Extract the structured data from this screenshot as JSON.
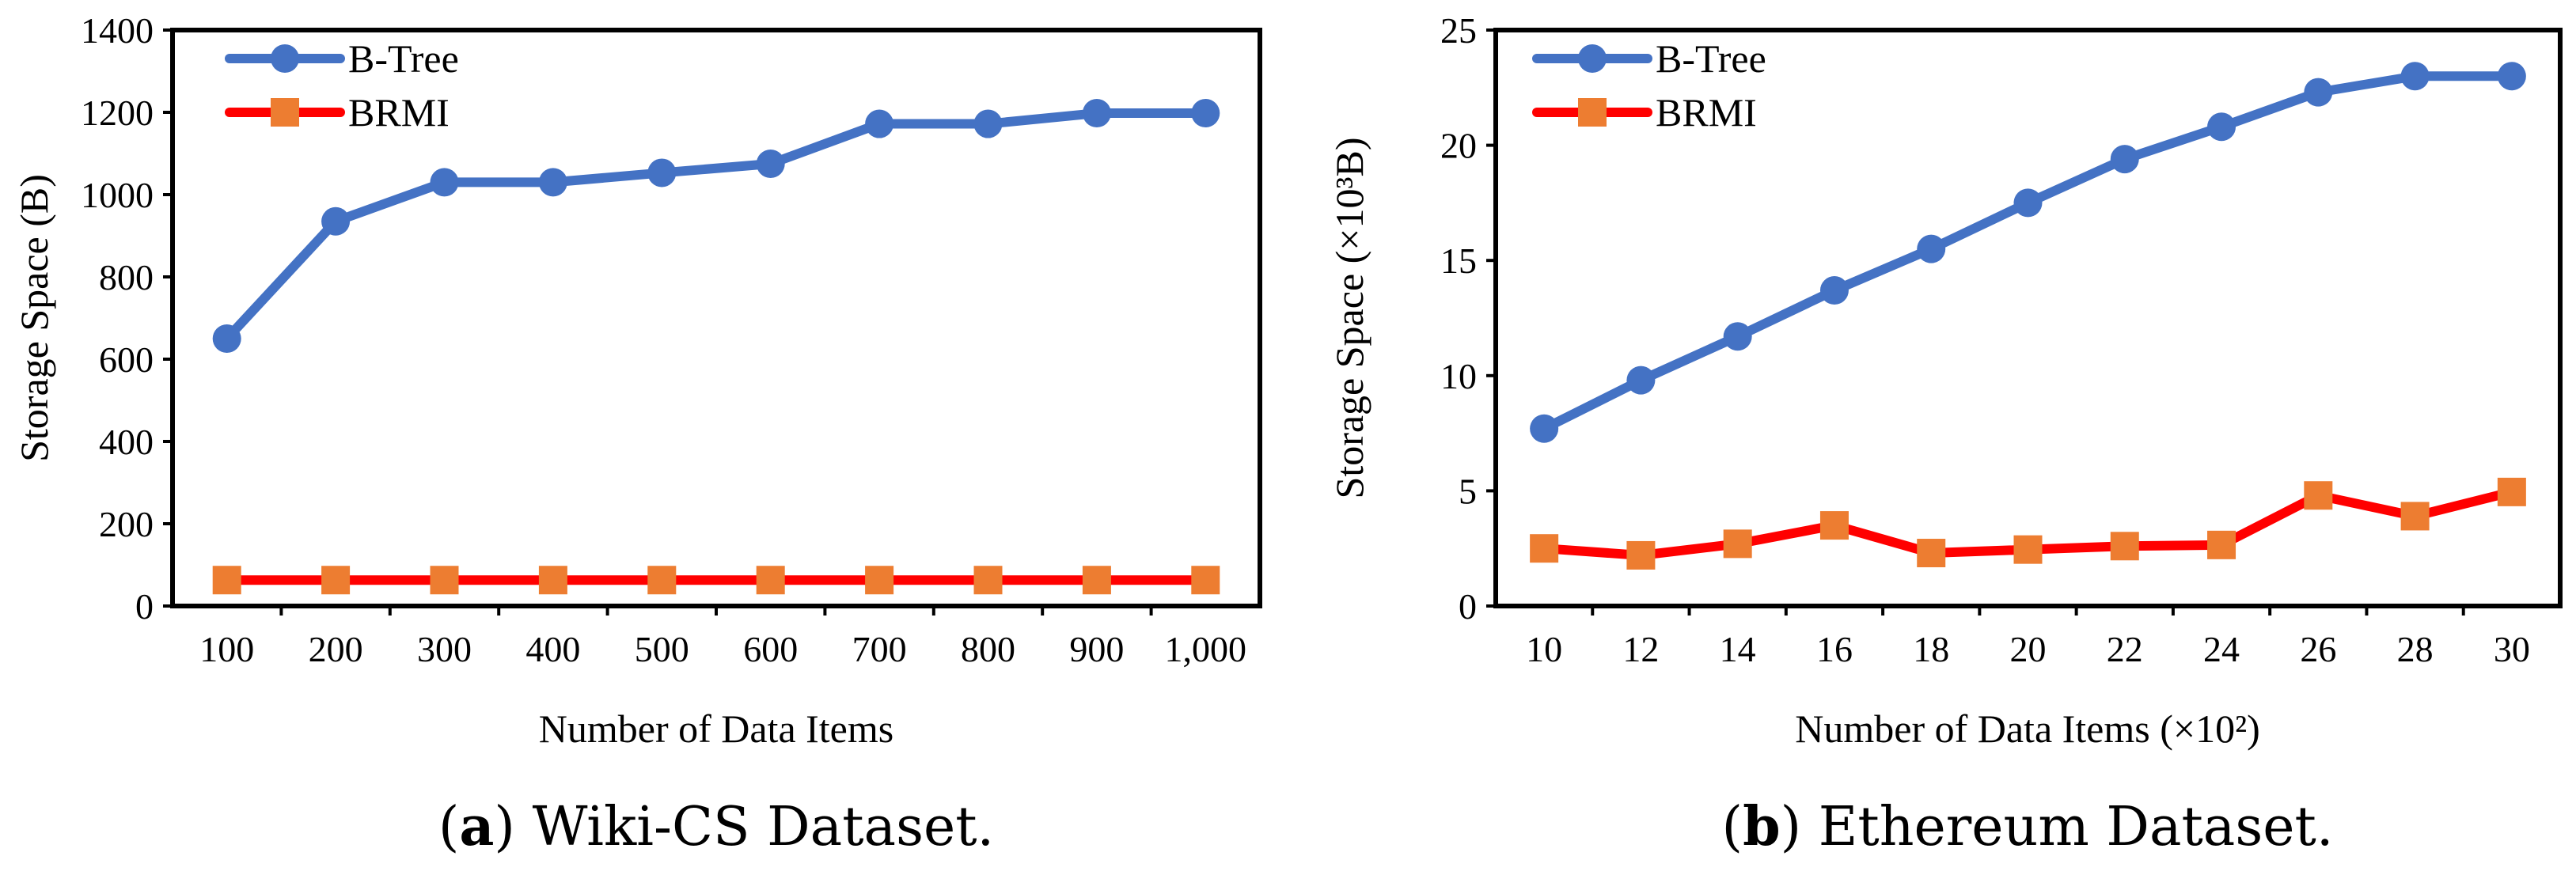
{
  "chart_data": [
    {
      "type": "line",
      "caption_letter": "a",
      "caption_text": "Wiki-CS Dataset.",
      "xlabel": "Number of Data Items",
      "ylabel": "Storage Space (B)",
      "categories": [
        "100",
        "200",
        "300",
        "400",
        "500",
        "600",
        "700",
        "800",
        "900",
        "1,000"
      ],
      "ylim": [
        0,
        1400
      ],
      "yticks": [
        "0",
        "200",
        "400",
        "600",
        "800",
        "1000",
        "1200",
        "1400"
      ],
      "legend_position": "top-left",
      "series": [
        {
          "name": "B-Tree",
          "color": "#4472C4",
          "marker": "circle",
          "values": [
            650,
            935,
            1030,
            1030,
            1053,
            1075,
            1172,
            1172,
            1198,
            1198
          ]
        },
        {
          "name": "BRMI",
          "color": "#FF0000",
          "marker_color": "#ED7D31",
          "marker": "square",
          "values": [
            63,
            63,
            63,
            63,
            63,
            63,
            63,
            63,
            63,
            63
          ]
        }
      ]
    },
    {
      "type": "line",
      "caption_letter": "b",
      "caption_text": "Ethereum Dataset.",
      "xlabel": "Number of Data Items (×10²)",
      "ylabel": "Storage Space (×10³B)",
      "categories": [
        "10",
        "12",
        "14",
        "16",
        "18",
        "20",
        "22",
        "24",
        "26",
        "28",
        "30"
      ],
      "ylim": [
        0,
        25
      ],
      "yticks": [
        "0",
        "5",
        "10",
        "15",
        "20",
        "25"
      ],
      "legend_position": "top-left",
      "series": [
        {
          "name": "B-Tree",
          "color": "#4472C4",
          "marker": "circle",
          "values": [
            7.7,
            9.8,
            11.7,
            13.7,
            15.5,
            17.5,
            19.4,
            20.8,
            22.3,
            23.0,
            23.0
          ]
        },
        {
          "name": "BRMI",
          "color": "#FF0000",
          "marker_color": "#ED7D31",
          "marker": "square",
          "values": [
            2.5,
            2.2,
            2.7,
            3.5,
            2.3,
            2.45,
            2.6,
            2.65,
            4.8,
            3.9,
            4.95
          ]
        }
      ]
    }
  ]
}
